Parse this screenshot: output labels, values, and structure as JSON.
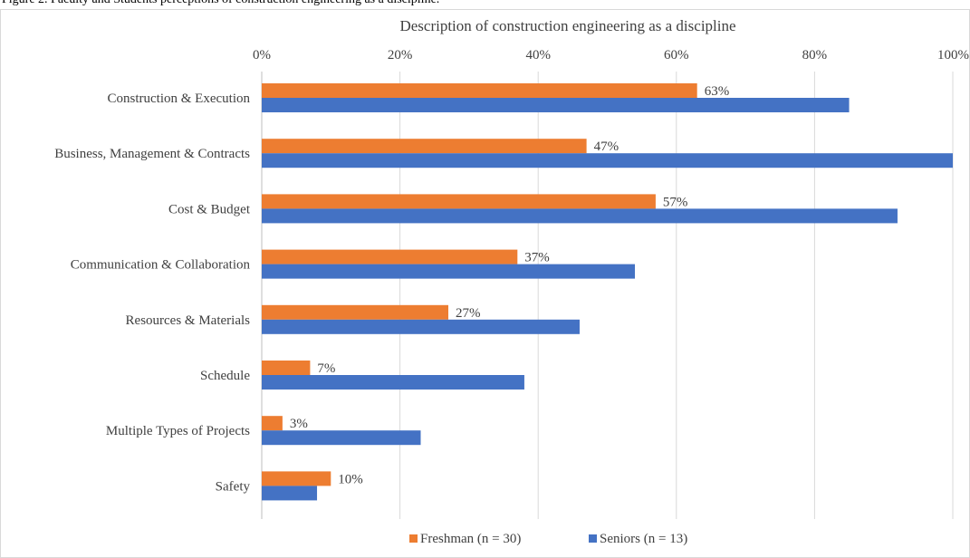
{
  "figure_caption": "Figure 2. Faculty and Students perceptions of construction engineering as a discipline.",
  "chart_data": {
    "type": "bar",
    "orientation": "horizontal",
    "title": "Description of construction engineering as a discipline",
    "xlabel": "",
    "ylabel": "",
    "xlim": [
      0,
      100
    ],
    "x_ticks": [
      "0%",
      "20%",
      "40%",
      "60%",
      "80%",
      "100%"
    ],
    "x_axis_position": "top",
    "grid": true,
    "legend_position": "bottom",
    "categories": [
      "Construction & Execution",
      "Business, Management & Contracts",
      "Cost & Budget",
      "Communication & Collaboration",
      "Resources & Materials",
      "Schedule",
      "Multiple Types of Projects",
      "Safety"
    ],
    "series": [
      {
        "name": "Freshman (n = 30)",
        "color": "#ed7d31",
        "values": [
          63,
          47,
          57,
          37,
          27,
          7,
          3,
          10
        ],
        "labels": [
          "63%",
          "47%",
          "57%",
          "37%",
          "27%",
          "7%",
          "3%",
          "10%"
        ]
      },
      {
        "name": "Seniors (n = 13)",
        "color": "#4472c4",
        "values": [
          85,
          100,
          92,
          54,
          46,
          38,
          23,
          8
        ],
        "labels": []
      }
    ]
  }
}
